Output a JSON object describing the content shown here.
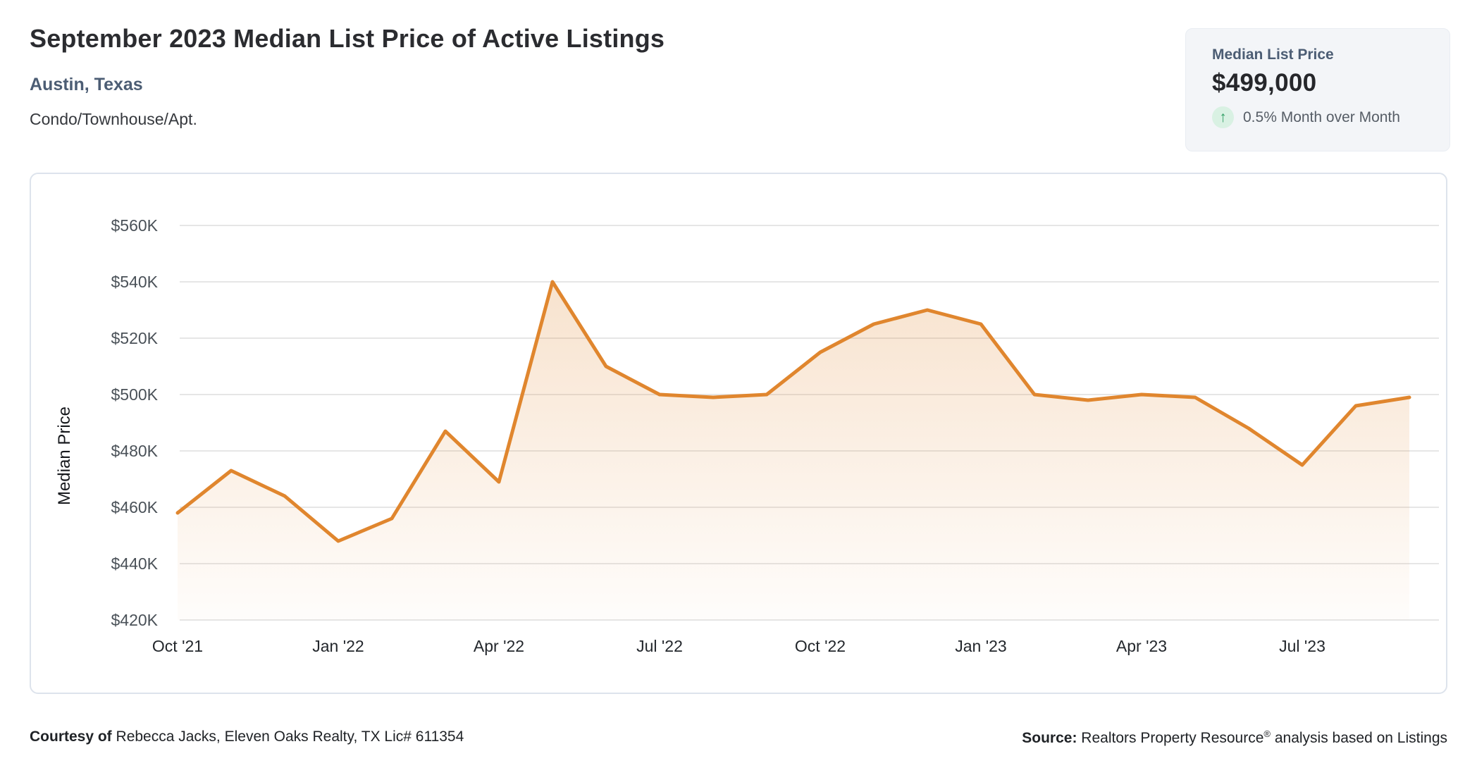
{
  "header": {
    "title": "September 2023 Median List Price of Active Listings",
    "location": "Austin, Texas",
    "property_type": "Condo/Townhouse/Apt."
  },
  "summary_card": {
    "label": "Median List Price",
    "value": "$499,000",
    "trend_icon": "arrow-up-icon",
    "trend_glyph": "↑",
    "change_text": "0.5% Month over Month"
  },
  "footer": {
    "courtesy_label": "Courtesy of",
    "courtesy_text": "Rebecca Jacks, Eleven Oaks Realty, TX Lic# 611354",
    "source_label": "Source:",
    "source_text_pre": "Realtors Property Resource",
    "source_reg_mark": "®",
    "source_text_post": "analysis based on Listings"
  },
  "colors": {
    "accent_orange": "#e0862e",
    "area_fill_top": "rgba(224,134,46,0.27)",
    "area_fill_bottom": "rgba(224,134,46,0.02)",
    "gridline": "#e6e6e6",
    "slate_heading": "#4c5d74",
    "trend_green": "#2f9e63",
    "trend_green_bg": "#d9f1e3",
    "card_border": "#dde3ec",
    "summary_bg": "#f3f5f8"
  },
  "chart_data": {
    "type": "area",
    "title": "September 2023 Median List Price of Active Listings",
    "ylabel": "Median Price",
    "xlabel": "",
    "unit": "USD thousands",
    "x": [
      "Oct '21",
      "Nov '21",
      "Dec '21",
      "Jan '22",
      "Feb '22",
      "Mar '22",
      "Apr '22",
      "May '22",
      "Jun '22",
      "Jul '22",
      "Aug '22",
      "Sep '22",
      "Oct '22",
      "Nov '22",
      "Dec '22",
      "Jan '23",
      "Feb '23",
      "Mar '23",
      "Apr '23",
      "May '23",
      "Jun '23",
      "Jul '23",
      "Aug '23",
      "Sep '23"
    ],
    "values": [
      458,
      473,
      464,
      448,
      456,
      487,
      469,
      540,
      510,
      500,
      499,
      500,
      515,
      525,
      530,
      525,
      500,
      498,
      500,
      499,
      488,
      475,
      496,
      499
    ],
    "x_tick_indices": [
      0,
      3,
      6,
      9,
      12,
      15,
      18,
      21
    ],
    "x_tick_labels": [
      "Oct '21",
      "Jan '22",
      "Apr '22",
      "Jul '22",
      "Oct '22",
      "Jan '23",
      "Apr '23",
      "Jul '23"
    ],
    "y_ticks": [
      {
        "label": "$560K",
        "value": 560
      },
      {
        "label": "$540K",
        "value": 540
      },
      {
        "label": "$520K",
        "value": 520
      },
      {
        "label": "$500K",
        "value": 500
      },
      {
        "label": "$480K",
        "value": 480
      },
      {
        "label": "$460K",
        "value": 460
      },
      {
        "label": "$440K",
        "value": 440
      },
      {
        "label": "$420K",
        "value": 420
      }
    ],
    "ylim": [
      420,
      560
    ],
    "grid": "horizontal-only",
    "legend": "none"
  }
}
